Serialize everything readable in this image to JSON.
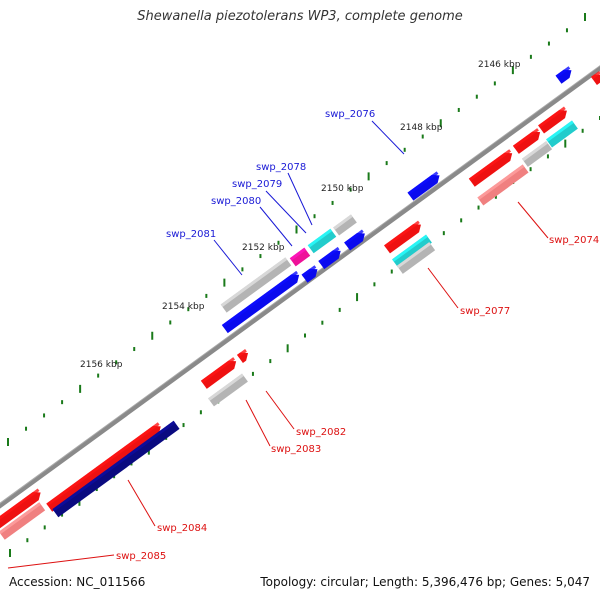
{
  "title": "Shewanella piezotolerans WP3, complete genome",
  "accession": "Accession: NC_011566",
  "topology": "Topology: circular; Length: 5,396,476 bp; Genes: 5,047",
  "colors": {
    "backbone": "#808080",
    "red": "#ee1111",
    "grey": "#b4b4b4",
    "blue": "#0a0aee",
    "navy": "#0a0a80",
    "cyan": "#22cccc",
    "magenta": "#ee1199",
    "pink": "#f08080",
    "tick": "#1a7a1a",
    "label_blue": "#1a1ad6",
    "label_red": "#dd1111"
  },
  "scale_labels": [
    {
      "kbp": 2146,
      "text": "2146 kbp"
    },
    {
      "kbp": 2148,
      "text": "2148 kbp"
    },
    {
      "kbp": 2150,
      "text": "2150 kbp"
    },
    {
      "kbp": 2152,
      "text": "2152 kbp"
    },
    {
      "kbp": 2154,
      "text": "2154 kbp"
    },
    {
      "kbp": 2156,
      "text": "2156 kbp"
    }
  ],
  "gene_labels": [
    {
      "text": "swp_2076",
      "color": "blue"
    },
    {
      "text": "swp_2078",
      "color": "blue"
    },
    {
      "text": "swp_2079",
      "color": "blue"
    },
    {
      "text": "swp_2080",
      "color": "blue"
    },
    {
      "text": "swp_2081",
      "color": "blue"
    },
    {
      "text": "swp_2074",
      "color": "red"
    },
    {
      "text": "swp_2077",
      "color": "red"
    },
    {
      "text": "swp_2082",
      "color": "red"
    },
    {
      "text": "swp_2083",
      "color": "red"
    },
    {
      "text": "swp_2084",
      "color": "red"
    },
    {
      "text": "swp_2085",
      "color": "red"
    }
  ]
}
